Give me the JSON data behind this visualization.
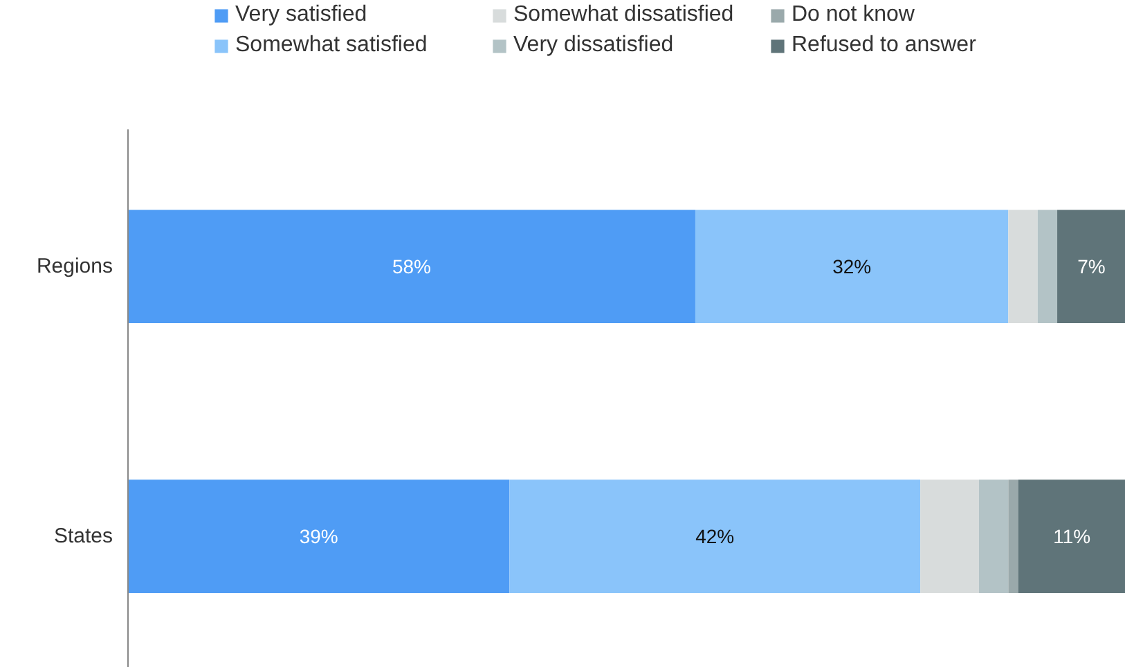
{
  "chart_data": {
    "type": "bar",
    "orientation": "horizontal",
    "stacked": true,
    "categories": [
      "Regions",
      "States"
    ],
    "tick_labels": "y",
    "legend": "top",
    "series": [
      {
        "name": "Very satisfied",
        "color": "#4f9cf5",
        "values": [
          58,
          39
        ],
        "value_labels": [
          "58%",
          "39%"
        ]
      },
      {
        "name": "Somewhat satisfied",
        "color": "#8ac4fa",
        "values": [
          32,
          42
        ],
        "value_labels": [
          "32%",
          "42%"
        ]
      },
      {
        "name": "Somewhat dissatisfied",
        "color": "#d8dcdc",
        "values": [
          3,
          6
        ],
        "value_labels": [
          null,
          null
        ]
      },
      {
        "name": "Very dissatisfied",
        "color": "#b3c3c6",
        "values": [
          2,
          3
        ],
        "value_labels": [
          null,
          null
        ]
      },
      {
        "name": "Do not know",
        "color": "#9aa9ab",
        "values": [
          null,
          1
        ],
        "value_labels": [
          null,
          null
        ]
      },
      {
        "name": "Refused to answer",
        "color": "#5f7479",
        "values": [
          7,
          11
        ],
        "value_labels": [
          "7%",
          "11%"
        ]
      }
    ]
  }
}
